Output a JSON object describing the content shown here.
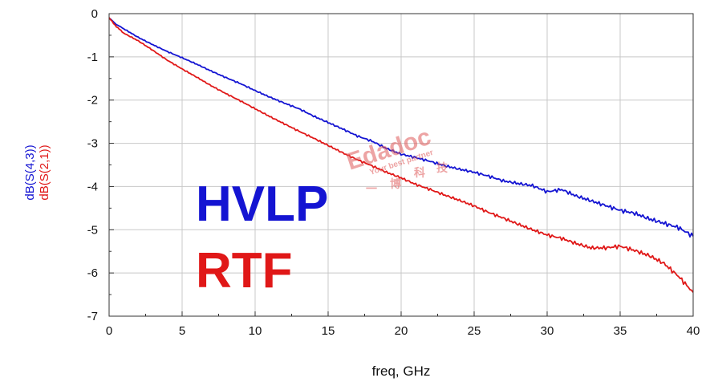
{
  "chart_data": {
    "type": "line",
    "title": "",
    "xlabel": "freq, GHz",
    "ylabels": [
      "dB(S(4,3))",
      "dB(S(2,1))"
    ],
    "xlim": [
      0,
      40
    ],
    "ylim": [
      -7,
      0
    ],
    "xticks": [
      0,
      5,
      10,
      15,
      20,
      25,
      30,
      35,
      40
    ],
    "yticks": [
      0,
      -1,
      -2,
      -3,
      -4,
      -5,
      -6,
      -7
    ],
    "grid": true,
    "series": [
      {
        "name": "HVLP",
        "color": "#1414d2",
        "x": [
          0,
          0.5,
          1,
          2,
          3,
          4,
          5,
          6,
          7,
          8,
          9,
          10,
          11,
          12,
          13,
          14,
          15,
          16,
          17,
          18,
          19,
          20,
          21,
          22,
          23,
          24,
          25,
          26,
          27,
          28,
          29,
          30,
          31,
          32,
          33,
          34,
          35,
          36,
          37,
          38,
          39,
          40
        ],
        "y": [
          -0.1,
          -0.25,
          -0.35,
          -0.55,
          -0.72,
          -0.88,
          -1.02,
          -1.17,
          -1.33,
          -1.48,
          -1.62,
          -1.78,
          -1.93,
          -2.07,
          -2.2,
          -2.37,
          -2.52,
          -2.67,
          -2.83,
          -2.95,
          -3.12,
          -3.25,
          -3.33,
          -3.42,
          -3.52,
          -3.6,
          -3.67,
          -3.76,
          -3.87,
          -3.93,
          -3.98,
          -4.12,
          -4.07,
          -4.22,
          -4.33,
          -4.44,
          -4.55,
          -4.62,
          -4.75,
          -4.85,
          -4.95,
          -5.15
        ]
      },
      {
        "name": "RTF",
        "color": "#e01818",
        "x": [
          0,
          0.5,
          1,
          2,
          3,
          4,
          5,
          6,
          7,
          8,
          9,
          10,
          11,
          12,
          13,
          14,
          15,
          16,
          17,
          18,
          19,
          20,
          21,
          22,
          23,
          24,
          25,
          26,
          27,
          28,
          29,
          30,
          31,
          32,
          33,
          34,
          35,
          36,
          37,
          38,
          39,
          40
        ],
        "y": [
          -0.1,
          -0.3,
          -0.45,
          -0.63,
          -0.85,
          -1.08,
          -1.28,
          -1.47,
          -1.67,
          -1.85,
          -2.02,
          -2.2,
          -2.38,
          -2.55,
          -2.72,
          -2.88,
          -3.05,
          -3.22,
          -3.38,
          -3.52,
          -3.67,
          -3.8,
          -3.95,
          -4.07,
          -4.2,
          -4.32,
          -4.45,
          -4.6,
          -4.73,
          -4.87,
          -5.0,
          -5.12,
          -5.2,
          -5.32,
          -5.42,
          -5.42,
          -5.38,
          -5.48,
          -5.6,
          -5.78,
          -6.08,
          -6.45
        ]
      }
    ],
    "annotations": [
      "HVLP",
      "RTF"
    ]
  },
  "watermark": {
    "brand": "Edadoc",
    "tagline": "Your best partner",
    "cn": [
      "一",
      "博",
      "科",
      "技"
    ]
  }
}
